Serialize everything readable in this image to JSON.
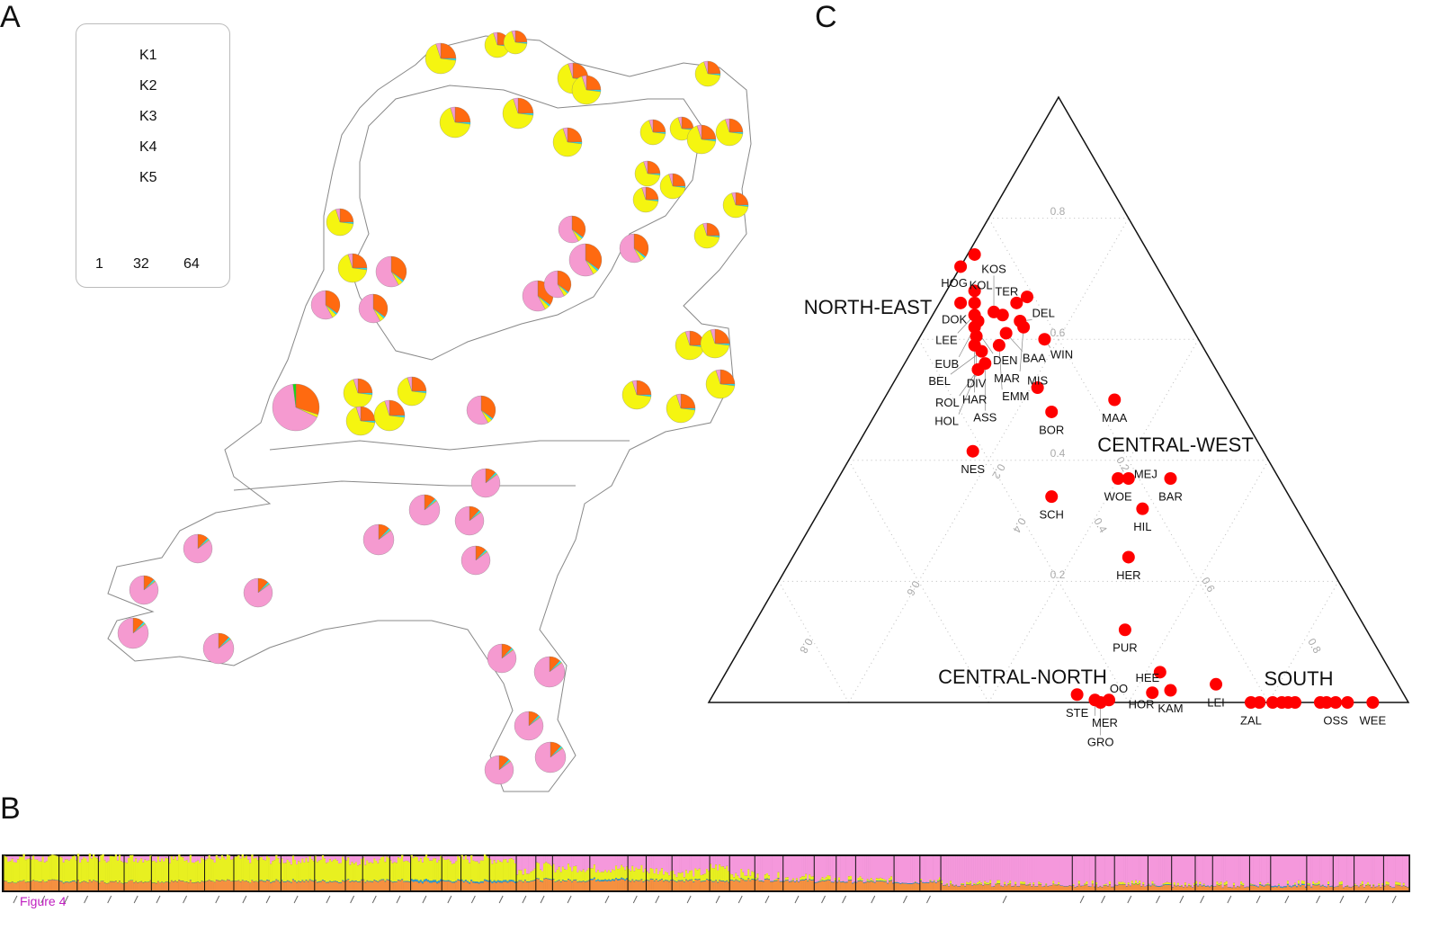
{
  "panels": {
    "a": "A",
    "b": "B",
    "c": "C"
  },
  "figure_label": "Figure 4",
  "legend": {
    "items": [
      {
        "label": "K1",
        "color": "#ff6a10"
      },
      {
        "label": "K2",
        "color": "#22e6f5"
      },
      {
        "label": "K3",
        "color": "#f5f510"
      },
      {
        "label": "K4",
        "color": "#f59ad0"
      },
      {
        "label": "K5",
        "color": "#10e010"
      }
    ],
    "sizes": [
      "1",
      "32",
      "64"
    ]
  },
  "map_pies": {
    "north": [
      0.25,
      0.02,
      0.68,
      0.05,
      0.0
    ],
    "large": [
      0.3,
      0.0,
      0.02,
      0.66,
      0.02
    ],
    "mixed": [
      0.35,
      0.02,
      0.05,
      0.58,
      0.0
    ],
    "south": [
      0.12,
      0.02,
      0.01,
      0.85,
      0.0
    ]
  },
  "chart_data": {
    "type": "scatter",
    "subtype": "ternary",
    "axes": [
      "NORTH-EAST",
      "SOUTH",
      "CENTRAL-NORTH"
    ],
    "group_labels": [
      "NORTH-EAST",
      "CENTRAL-WEST",
      "CENTRAL-NORTH",
      "SOUTH"
    ],
    "ticks": [
      "0.2",
      "0.4",
      "0.6",
      "0.8"
    ],
    "grid": true,
    "point_color": "#ff0000",
    "points": [
      {
        "label": "",
        "ne": 0.74,
        "s": 0.01
      },
      {
        "label": "HOG",
        "ne": 0.72,
        "s": 0.0
      },
      {
        "label": "KOL",
        "ne": 0.68,
        "s": 0.04
      },
      {
        "label": "DOK",
        "ne": 0.66,
        "s": 0.03
      },
      {
        "label": "",
        "ne": 0.66,
        "s": 0.05
      },
      {
        "label": "LEE",
        "ne": 0.64,
        "s": 0.06
      },
      {
        "label": "EUB",
        "ne": 0.63,
        "s": 0.07
      },
      {
        "label": "DEN",
        "ne": 0.62,
        "s": 0.07
      },
      {
        "label": "KOS",
        "ne": 0.645,
        "s": 0.085
      },
      {
        "label": "",
        "ne": 0.64,
        "s": 0.1
      },
      {
        "label": "TER",
        "ne": 0.66,
        "s": 0.11
      },
      {
        "label": "",
        "ne": 0.67,
        "s": 0.12
      },
      {
        "label": "DEL",
        "ne": 0.63,
        "s": 0.13
      },
      {
        "label": "DIV",
        "ne": 0.605,
        "s": 0.08
      },
      {
        "label": "BAA",
        "ne": 0.61,
        "s": 0.12
      },
      {
        "label": "MAR",
        "ne": 0.62,
        "s": 0.14
      },
      {
        "label": "HAR",
        "ne": 0.59,
        "s": 0.085
      },
      {
        "label": "EMM",
        "ne": 0.59,
        "s": 0.12
      },
      {
        "label": "WIN",
        "ne": 0.6,
        "s": 0.18
      },
      {
        "label": "BEL",
        "ne": 0.58,
        "s": 0.1
      },
      {
        "label": "ASS",
        "ne": 0.56,
        "s": 0.115
      },
      {
        "label": "ROL",
        "ne": 0.55,
        "s": 0.11
      },
      {
        "label": "HOL",
        "ne": 0.55,
        "s": 0.11
      },
      {
        "label": "MIS",
        "ne": 0.52,
        "s": 0.21
      },
      {
        "label": "BOR",
        "ne": 0.48,
        "s": 0.25
      },
      {
        "label": "MAA",
        "ne": 0.5,
        "s": 0.33
      },
      {
        "label": "NES",
        "ne": 0.415,
        "s": 0.17
      },
      {
        "label": "SCH",
        "ne": 0.34,
        "s": 0.32
      },
      {
        "label": "WOE",
        "ne": 0.37,
        "s": 0.4
      },
      {
        "label": "MEJ",
        "ne": 0.37,
        "s": 0.415
      },
      {
        "label": "BAR",
        "ne": 0.37,
        "s": 0.475
      },
      {
        "label": "HIL",
        "ne": 0.32,
        "s": 0.46
      },
      {
        "label": "HER",
        "ne": 0.24,
        "s": 0.48
      },
      {
        "label": "PUR",
        "ne": 0.12,
        "s": 0.535
      },
      {
        "label": "HEE",
        "ne": 0.05,
        "s": 0.62
      },
      {
        "label": "KAM",
        "ne": 0.02,
        "s": 0.65
      },
      {
        "label": "HOR",
        "ne": 0.016,
        "s": 0.626
      },
      {
        "label": "LEI",
        "ne": 0.03,
        "s": 0.71
      },
      {
        "label": "STE",
        "ne": 0.013,
        "s": 0.52
      },
      {
        "label": "MER",
        "ne": 0.004,
        "s": 0.55
      },
      {
        "label": "GRO",
        "ne": 0.0,
        "s": 0.56
      },
      {
        "label": "OO",
        "ne": 0.004,
        "s": 0.57
      },
      {
        "label": "ZAL",
        "ne": 0.0,
        "s": 0.775
      },
      {
        "label": "",
        "ne": 0.0,
        "s": 0.787
      },
      {
        "label": "",
        "ne": 0.0,
        "s": 0.806
      },
      {
        "label": "",
        "ne": 0.0,
        "s": 0.819
      },
      {
        "label": "",
        "ne": 0.0,
        "s": 0.828
      },
      {
        "label": "",
        "ne": 0.0,
        "s": 0.838
      },
      {
        "label": "",
        "ne": 0.0,
        "s": 0.874
      },
      {
        "label": "",
        "ne": 0.0,
        "s": 0.883
      },
      {
        "label": "OSS",
        "ne": 0.0,
        "s": 0.896
      },
      {
        "label": "",
        "ne": 0.0,
        "s": 0.913
      },
      {
        "label": "WEE",
        "ne": 0.0,
        "s": 0.949
      }
    ]
  },
  "structure_bar": {
    "colors": [
      "#f59040",
      "#2a9ad8",
      "#e8f020",
      "#f598dc"
    ],
    "segments": [
      [
        0.25,
        0.01,
        0.68,
        0.06
      ],
      [
        0.27,
        0.01,
        0.64,
        0.08
      ],
      [
        0.25,
        0.02,
        0.68,
        0.05
      ],
      [
        0.26,
        0.01,
        0.68,
        0.05
      ],
      [
        0.24,
        0.01,
        0.7,
        0.05
      ],
      [
        0.26,
        0.01,
        0.67,
        0.06
      ],
      [
        0.25,
        0.01,
        0.7,
        0.04
      ],
      [
        0.26,
        0.01,
        0.66,
        0.07
      ],
      [
        0.27,
        0.01,
        0.64,
        0.08
      ],
      [
        0.25,
        0.01,
        0.66,
        0.08
      ],
      [
        0.26,
        0.02,
        0.62,
        0.1
      ],
      [
        0.27,
        0.02,
        0.6,
        0.11
      ],
      [
        0.26,
        0.02,
        0.64,
        0.08
      ],
      [
        0.28,
        0.02,
        0.56,
        0.14
      ],
      [
        0.27,
        0.02,
        0.58,
        0.13
      ],
      [
        0.27,
        0.02,
        0.62,
        0.09
      ],
      [
        0.24,
        0.06,
        0.62,
        0.08
      ],
      [
        0.26,
        0.03,
        0.6,
        0.11
      ],
      [
        0.24,
        0.04,
        0.64,
        0.08
      ],
      [
        0.25,
        0.05,
        0.6,
        0.1
      ],
      [
        0.28,
        0.02,
        0.3,
        0.4
      ],
      [
        0.3,
        0.02,
        0.38,
        0.3
      ],
      [
        0.28,
        0.02,
        0.36,
        0.34
      ],
      [
        0.3,
        0.04,
        0.3,
        0.36
      ],
      [
        0.28,
        0.02,
        0.34,
        0.36
      ],
      [
        0.3,
        0.02,
        0.26,
        0.42
      ],
      [
        0.28,
        0.02,
        0.22,
        0.48
      ],
      [
        0.26,
        0.02,
        0.4,
        0.32
      ],
      [
        0.3,
        0.02,
        0.18,
        0.5
      ],
      [
        0.3,
        0.02,
        0.08,
        0.6
      ],
      [
        0.28,
        0.02,
        0.06,
        0.64
      ],
      [
        0.26,
        0.02,
        0.04,
        0.68
      ],
      [
        0.25,
        0.02,
        0.03,
        0.7
      ],
      [
        0.24,
        0.02,
        0.02,
        0.72
      ],
      [
        0.22,
        0.02,
        0.02,
        0.74
      ],
      [
        0.25,
        0.02,
        0.02,
        0.71
      ],
      [
        0.15,
        0.01,
        0.01,
        0.83
      ],
      [
        0.14,
        0.01,
        0.01,
        0.84
      ],
      [
        0.13,
        0.01,
        0.01,
        0.85
      ],
      [
        0.15,
        0.01,
        0.01,
        0.83
      ],
      [
        0.14,
        0.02,
        0.01,
        0.83
      ],
      [
        0.12,
        0.01,
        0.01,
        0.86
      ],
      [
        0.13,
        0.02,
        0.01,
        0.84
      ],
      [
        0.12,
        0.01,
        0.01,
        0.86
      ],
      [
        0.14,
        0.02,
        0.01,
        0.83
      ],
      [
        0.12,
        0.03,
        0.01,
        0.84
      ],
      [
        0.13,
        0.02,
        0.01,
        0.84
      ],
      [
        0.12,
        0.01,
        0.01,
        0.86
      ],
      [
        0.13,
        0.01,
        0.01,
        0.85
      ],
      [
        0.12,
        0.01,
        0.01,
        0.86
      ]
    ]
  }
}
